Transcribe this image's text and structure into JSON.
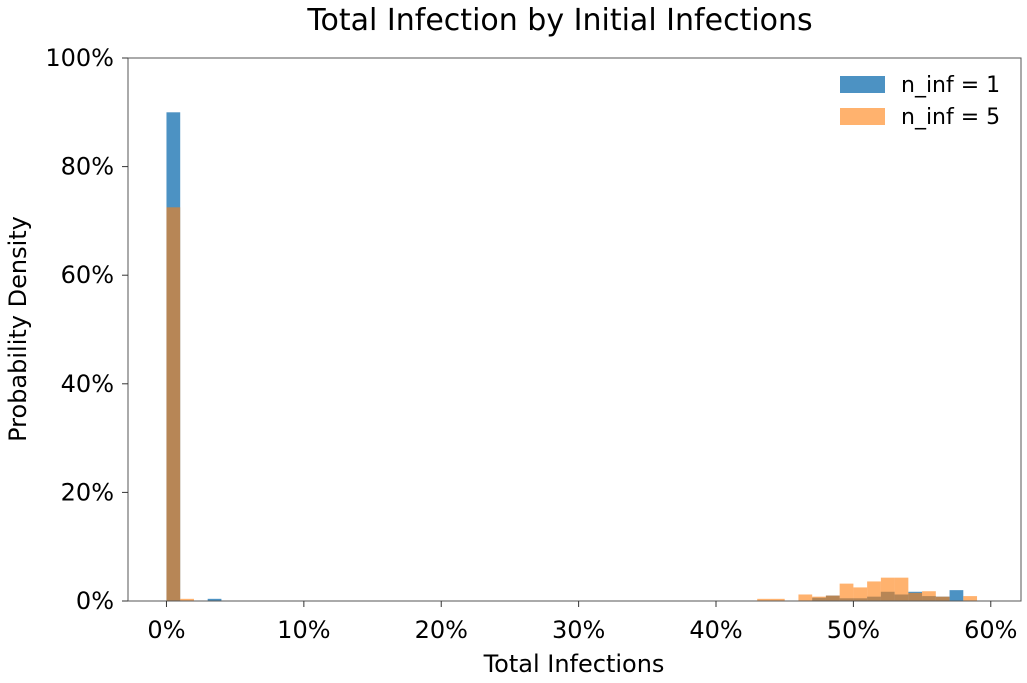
{
  "chart_data": {
    "type": "bar",
    "title": "Total Infection by Initial Infections",
    "xlabel": "Total Infections",
    "ylabel": "Probability Density",
    "xlim": [
      -2.8,
      62.2
    ],
    "ylim": [
      0,
      100
    ],
    "x_ticks": [
      0,
      10,
      20,
      30,
      40,
      50,
      60
    ],
    "x_tick_labels": [
      "0%",
      "10%",
      "20%",
      "30%",
      "40%",
      "50%",
      "60%"
    ],
    "y_ticks": [
      0,
      20,
      40,
      60,
      80,
      100
    ],
    "y_tick_labels": [
      "0%",
      "20%",
      "40%",
      "60%",
      "80%",
      "100%"
    ],
    "bin_width": 1,
    "grid": false,
    "legend_position": "top-right",
    "series": [
      {
        "name": "n_inf = 1",
        "color": "#1f77b4",
        "opacity": 0.8,
        "bins": [
          {
            "x": 0,
            "y": 90.0
          },
          {
            "x": 3,
            "y": 0.4
          },
          {
            "x": 47,
            "y": 0.6
          },
          {
            "x": 48,
            "y": 1.0
          },
          {
            "x": 49,
            "y": 0.5
          },
          {
            "x": 50,
            "y": 0.5
          },
          {
            "x": 51,
            "y": 0.8
          },
          {
            "x": 52,
            "y": 1.7
          },
          {
            "x": 53,
            "y": 1.2
          },
          {
            "x": 54,
            "y": 1.7
          },
          {
            "x": 55,
            "y": 0.9
          },
          {
            "x": 56,
            "y": 0.8
          },
          {
            "x": 57,
            "y": 2.0
          }
        ]
      },
      {
        "name": "n_inf = 5",
        "color": "#ff7f0e",
        "opacity": 0.6,
        "bins": [
          {
            "x": 0,
            "y": 72.5
          },
          {
            "x": 1,
            "y": 0.4
          },
          {
            "x": 43,
            "y": 0.4
          },
          {
            "x": 44,
            "y": 0.4
          },
          {
            "x": 46,
            "y": 1.2
          },
          {
            "x": 47,
            "y": 0.8
          },
          {
            "x": 48,
            "y": 1.0
          },
          {
            "x": 49,
            "y": 3.2
          },
          {
            "x": 50,
            "y": 2.5
          },
          {
            "x": 51,
            "y": 3.6
          },
          {
            "x": 52,
            "y": 4.3
          },
          {
            "x": 53,
            "y": 4.3
          },
          {
            "x": 54,
            "y": 1.5
          },
          {
            "x": 55,
            "y": 1.8
          },
          {
            "x": 56,
            "y": 0.8
          },
          {
            "x": 58,
            "y": 0.9
          }
        ]
      }
    ]
  }
}
